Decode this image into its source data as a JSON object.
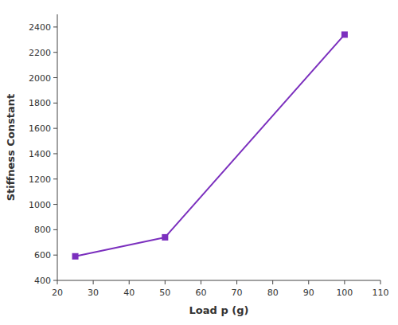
{
  "chart_data": {
    "type": "line",
    "x": [
      25,
      50,
      100
    ],
    "values": [
      590,
      740,
      2340
    ],
    "color": "#7B2FBE",
    "marker": "square",
    "xlabel": "Load p (g)",
    "ylabel": "Stiffness Constant",
    "xlim": [
      20,
      110
    ],
    "ylim": [
      400,
      2500
    ],
    "xticks": [
      20,
      30,
      40,
      50,
      60,
      70,
      80,
      90,
      100,
      110
    ],
    "yticks": [
      400,
      600,
      800,
      1000,
      1200,
      1400,
      1600,
      1800,
      2000,
      2200,
      2400
    ],
    "grid": false
  }
}
